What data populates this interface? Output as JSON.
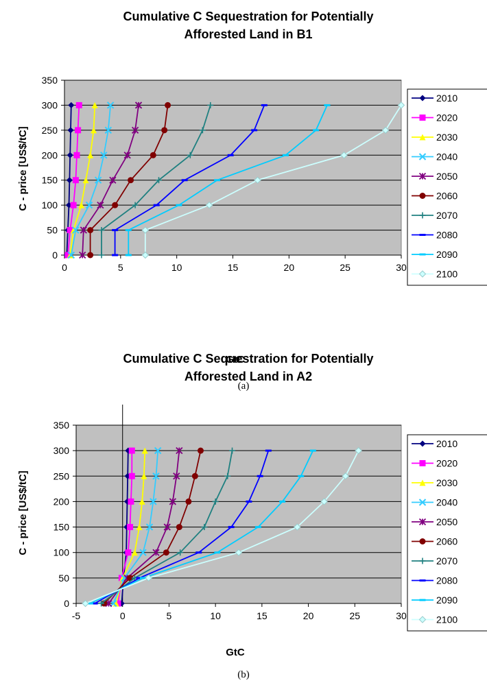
{
  "chart_data": [
    {
      "type": "line",
      "title_lines": [
        "Cumulative C Sequestration for Potentially",
        "Afforested Land in B1"
      ],
      "xlabel": "GtC",
      "ylabel": "C - price [US$/tC]",
      "xlim": [
        0,
        30
      ],
      "ylim": [
        0,
        350
      ],
      "xticks": [
        "0",
        "5",
        "10",
        "15",
        "20",
        "25",
        "30"
      ],
      "yticks": [
        "0",
        "50",
        "100",
        "150",
        "200",
        "250",
        "300",
        "350"
      ],
      "grid": "horizontal",
      "legend_position": "right",
      "caption": "(a)",
      "y": [
        0,
        50,
        100,
        150,
        200,
        250,
        300
      ],
      "series": [
        {
          "name": "2010",
          "color": "#000080",
          "marker": "diamond",
          "x": [
            0.2,
            0.3,
            0.4,
            0.45,
            0.5,
            0.55,
            0.6
          ]
        },
        {
          "name": "2020",
          "color": "#ff00ff",
          "marker": "square",
          "x": [
            0.3,
            0.5,
            0.8,
            1.0,
            1.1,
            1.2,
            1.3
          ]
        },
        {
          "name": "2030",
          "color": "#ffff00",
          "marker": "triangle",
          "x": [
            0.5,
            0.8,
            1.5,
            1.9,
            2.3,
            2.6,
            2.7
          ]
        },
        {
          "name": "2040",
          "color": "#33ccff",
          "marker": "x",
          "x": [
            0.6,
            1.0,
            2.2,
            3.0,
            3.5,
            3.9,
            4.1
          ]
        },
        {
          "name": "2050",
          "color": "#800080",
          "marker": "star",
          "x": [
            1.6,
            1.7,
            3.2,
            4.3,
            5.6,
            6.3,
            6.6
          ]
        },
        {
          "name": "2060",
          "color": "#800000",
          "marker": "circle",
          "x": [
            2.3,
            2.3,
            4.5,
            5.9,
            7.9,
            8.9,
            9.2
          ]
        },
        {
          "name": "2070",
          "color": "#1f8080",
          "marker": "plus",
          "x": [
            3.3,
            3.3,
            6.3,
            8.4,
            11.2,
            12.3,
            13.0
          ]
        },
        {
          "name": "2080",
          "color": "#0000ff",
          "marker": "dash",
          "x": [
            4.5,
            4.5,
            8.2,
            10.7,
            14.8,
            16.9,
            17.8
          ]
        },
        {
          "name": "2090",
          "color": "#00ccff",
          "marker": "dash",
          "x": [
            5.7,
            5.7,
            10.2,
            13.6,
            19.7,
            22.4,
            23.4
          ]
        },
        {
          "name": "2100",
          "color": "#ccffff",
          "marker": "diamond",
          "x": [
            7.2,
            7.2,
            12.9,
            17.2,
            24.9,
            28.6,
            30.0
          ]
        }
      ]
    },
    {
      "type": "line",
      "title_lines": [
        "Cumulative C Sequestration for Potentially",
        "Afforested Land in A2"
      ],
      "xlabel": "GtC",
      "ylabel": "C - price [US$/tC]",
      "xlim": [
        -5,
        30
      ],
      "ylim": [
        0,
        350
      ],
      "xticks": [
        "-5",
        "0",
        "5",
        "10",
        "15",
        "20",
        "25",
        "30"
      ],
      "yticks": [
        "0",
        "50",
        "100",
        "150",
        "200",
        "250",
        "300",
        "350"
      ],
      "grid": "horizontal",
      "legend_position": "right",
      "caption": "(b)",
      "y": [
        0,
        50,
        100,
        150,
        200,
        250,
        300
      ],
      "series": [
        {
          "name": "2010",
          "color": "#000080",
          "marker": "diamond",
          "x": [
            -0.1,
            0.1,
            0.4,
            0.45,
            0.5,
            0.55,
            0.6
          ]
        },
        {
          "name": "2020",
          "color": "#ff00ff",
          "marker": "square",
          "x": [
            -0.5,
            -0.1,
            0.6,
            0.8,
            0.9,
            1.0,
            1.0
          ]
        },
        {
          "name": "2030",
          "color": "#ffff00",
          "marker": "triangle",
          "x": [
            -0.7,
            0.0,
            1.3,
            1.8,
            2.1,
            2.3,
            2.4
          ]
        },
        {
          "name": "2040",
          "color": "#33ccff",
          "marker": "x",
          "x": [
            -1.0,
            0.2,
            2.2,
            2.9,
            3.3,
            3.6,
            3.8
          ]
        },
        {
          "name": "2050",
          "color": "#800080",
          "marker": "star",
          "x": [
            -1.5,
            0.5,
            3.6,
            4.8,
            5.4,
            5.8,
            6.1
          ]
        },
        {
          "name": "2060",
          "color": "#800000",
          "marker": "circle",
          "x": [
            -2.0,
            0.8,
            4.7,
            6.1,
            7.1,
            7.8,
            8.4
          ]
        },
        {
          "name": "2070",
          "color": "#1f8080",
          "marker": "plus",
          "x": [
            -2.3,
            1.3,
            6.2,
            8.8,
            10.0,
            11.3,
            11.8
          ]
        },
        {
          "name": "2080",
          "color": "#0000ff",
          "marker": "dash",
          "x": [
            -3.0,
            1.8,
            8.2,
            11.7,
            13.6,
            14.8,
            15.7
          ]
        },
        {
          "name": "2090",
          "color": "#00ccff",
          "marker": "dash",
          "x": [
            -3.5,
            2.2,
            10.2,
            14.6,
            17.2,
            19.2,
            20.5
          ]
        },
        {
          "name": "2100",
          "color": "#ccffff",
          "marker": "diamond",
          "x": [
            -4.0,
            2.8,
            12.5,
            18.8,
            21.7,
            24.0,
            25.4
          ]
        }
      ]
    }
  ]
}
